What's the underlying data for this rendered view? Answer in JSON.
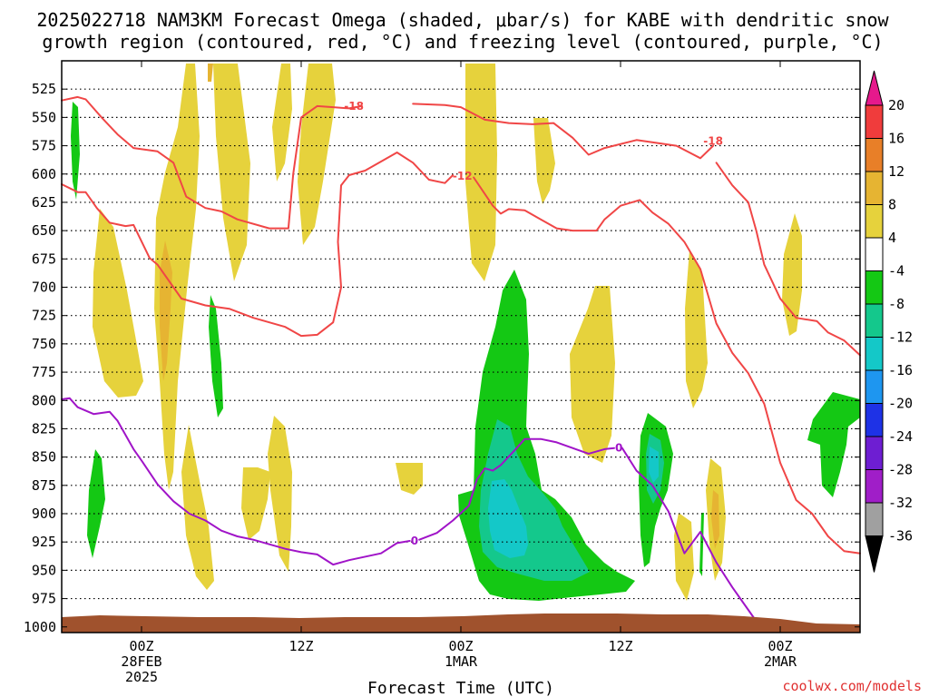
{
  "chart_data": {
    "type": "time-height contour",
    "title_line1": "2025022718 NAM3KM Forecast Omega (shaded, μbar/s) for KABE with dendritic snow",
    "title_line2": "growth region (contoured, red, °C) and freezing level (contoured, purple, °C)",
    "xlabel": "Forecast Time (UTC)",
    "credit": "coolwx.com/models",
    "x_range_hours": [
      -5,
      45
    ],
    "y_range_hpa": [
      500,
      1005
    ],
    "x_ticks": [
      {
        "hour": 0,
        "lines": [
          "00Z",
          "28FEB",
          "2025"
        ]
      },
      {
        "hour": 10,
        "lines": [
          "12Z"
        ]
      },
      {
        "hour": 20,
        "lines": [
          "00Z",
          "1MAR"
        ]
      },
      {
        "hour": 30,
        "lines": [
          "12Z"
        ]
      },
      {
        "hour": 40,
        "lines": [
          "00Z",
          "2MAR"
        ]
      }
    ],
    "y_ticks": [
      525,
      550,
      575,
      600,
      625,
      650,
      675,
      700,
      725,
      750,
      775,
      800,
      825,
      850,
      875,
      900,
      925,
      950,
      975,
      1000
    ],
    "colorbar": {
      "labels": [
        "20",
        "16",
        "12",
        "8",
        "4",
        "-4",
        "-8",
        "-12",
        "-16",
        "-20",
        "-24",
        "-28",
        "-32",
        "-36"
      ],
      "colors": [
        "#f03c3c",
        "#e87f28",
        "#e6b432",
        "#e6d23c",
        "#ffffff",
        "#14c814",
        "#14c88c",
        "#14c8c8",
        "#1e96f0",
        "#1e32e6",
        "#6e1ed2",
        "#a01ec8",
        "#a0a0a0"
      ],
      "over_color": "#e6198c",
      "under_color": "#000000"
    },
    "shading_colors": {
      "pos_4_8": "#e6d23c",
      "pos_8_12": "#e6b432",
      "neg_4_8": "#14c814",
      "neg_8_12": "#14c88c",
      "neg_12_16": "#14c8c8",
      "ground": "#a0522d"
    },
    "contour_colors": {
      "red": "#f04646",
      "purple": "#a014c8"
    },
    "contour_labels": [
      {
        "text": "-18",
        "hour": 13.3,
        "hpa": 540,
        "color": "#f04646"
      },
      {
        "text": "-18",
        "hour": 35.8,
        "hpa": 571,
        "color": "#f04646"
      },
      {
        "text": "-12",
        "hour": 20.1,
        "hpa": 602,
        "color": "#f04646"
      },
      {
        "text": "0",
        "hour": 17.1,
        "hpa": 924,
        "color": "#a014c8"
      },
      {
        "text": "0",
        "hour": 29.9,
        "hpa": 842,
        "color": "#a014c8"
      }
    ],
    "series": [
      {
        "color": "#f04646",
        "points": [
          [
            -5,
            535
          ],
          [
            -4,
            532
          ],
          [
            -3.5,
            534
          ],
          [
            -2.5,
            550
          ],
          [
            -1.5,
            565
          ],
          [
            -0.5,
            577
          ],
          [
            1,
            580
          ],
          [
            2,
            590
          ],
          [
            2.8,
            620
          ],
          [
            4,
            630
          ],
          [
            5,
            633
          ],
          [
            6,
            640
          ],
          [
            8,
            648
          ],
          [
            9.2,
            648
          ],
          [
            9.5,
            600
          ],
          [
            10,
            550
          ],
          [
            11,
            540
          ],
          [
            12,
            541
          ],
          [
            13,
            542
          ],
          [
            13.8,
            540
          ]
        ]
      },
      {
        "color": "#f04646",
        "points": [
          [
            17,
            538
          ],
          [
            19,
            539
          ],
          [
            20,
            541
          ],
          [
            21.5,
            552
          ],
          [
            23,
            555
          ],
          [
            24.5,
            556
          ],
          [
            25.8,
            555
          ],
          [
            27,
            568
          ],
          [
            28,
            583
          ],
          [
            29,
            577
          ],
          [
            31,
            570
          ],
          [
            33.5,
            575
          ],
          [
            35,
            586
          ],
          [
            35.8,
            575
          ]
        ]
      },
      {
        "color": "#f04646",
        "points": [
          [
            36,
            590
          ],
          [
            37,
            610
          ],
          [
            38,
            625
          ],
          [
            38.5,
            650
          ],
          [
            39,
            680
          ],
          [
            40,
            710
          ],
          [
            41,
            727
          ],
          [
            42.3,
            730
          ],
          [
            43,
            740
          ],
          [
            44,
            747
          ],
          [
            45,
            760
          ]
        ]
      },
      {
        "color": "#f04646",
        "points": [
          [
            -5,
            609
          ],
          [
            -4,
            616
          ],
          [
            -3.5,
            616
          ],
          [
            -2.8,
            630
          ],
          [
            -2,
            643
          ],
          [
            -1,
            646
          ],
          [
            -0.5,
            645
          ],
          [
            0.5,
            674
          ],
          [
            1,
            680
          ],
          [
            2.5,
            710
          ],
          [
            4,
            716
          ],
          [
            5.5,
            719
          ],
          [
            7,
            727
          ],
          [
            9,
            735
          ],
          [
            10,
            743
          ],
          [
            11,
            742
          ],
          [
            12,
            731
          ],
          [
            12.5,
            700
          ],
          [
            12.3,
            660
          ],
          [
            12.5,
            610
          ],
          [
            13,
            601
          ],
          [
            14,
            597
          ],
          [
            16,
            581
          ],
          [
            17,
            590
          ],
          [
            18,
            605
          ],
          [
            19,
            608
          ],
          [
            19.5,
            601
          ]
        ]
      },
      {
        "color": "#f04646",
        "points": [
          [
            20.8,
            603
          ],
          [
            22,
            628
          ],
          [
            22.5,
            635
          ],
          [
            23,
            631
          ],
          [
            24,
            632
          ],
          [
            25,
            640
          ],
          [
            26,
            648
          ],
          [
            27,
            650
          ],
          [
            28.5,
            650
          ],
          [
            29,
            640
          ],
          [
            30,
            628
          ],
          [
            31.2,
            623
          ],
          [
            32,
            634
          ],
          [
            33,
            644
          ],
          [
            34,
            660
          ],
          [
            35,
            684
          ],
          [
            36,
            732
          ],
          [
            37,
            758
          ],
          [
            38,
            776
          ],
          [
            39,
            803
          ],
          [
            40,
            855
          ],
          [
            41,
            888
          ],
          [
            42,
            900
          ],
          [
            43,
            920
          ],
          [
            44,
            933
          ],
          [
            45,
            935
          ]
        ]
      },
      {
        "color": "#a014c8",
        "points": [
          [
            -5,
            799
          ],
          [
            -4.5,
            798
          ],
          [
            -4,
            806
          ],
          [
            -3,
            812
          ],
          [
            -2,
            810
          ],
          [
            -1.5,
            818
          ],
          [
            -0.5,
            843
          ],
          [
            0,
            853
          ],
          [
            1,
            874
          ],
          [
            2,
            889
          ],
          [
            3,
            900
          ],
          [
            4,
            906
          ],
          [
            5,
            915
          ],
          [
            6,
            920
          ],
          [
            7,
            923
          ],
          [
            8,
            927
          ],
          [
            9,
            931
          ],
          [
            10,
            934
          ],
          [
            11,
            936
          ],
          [
            12,
            945
          ],
          [
            13,
            941
          ],
          [
            15,
            935
          ],
          [
            16,
            926
          ],
          [
            16.8,
            924
          ]
        ]
      },
      {
        "color": "#a014c8",
        "points": [
          [
            17.4,
            923
          ],
          [
            18.5,
            917
          ],
          [
            19.5,
            906
          ],
          [
            20.5,
            893
          ],
          [
            21,
            870
          ],
          [
            21.5,
            860
          ],
          [
            22,
            862
          ],
          [
            22.5,
            857
          ],
          [
            23.5,
            842
          ],
          [
            24,
            834
          ],
          [
            25,
            834
          ],
          [
            26,
            837
          ],
          [
            27,
            842
          ],
          [
            28,
            847
          ],
          [
            29,
            843
          ],
          [
            29.6,
            842
          ]
        ]
      },
      {
        "color": "#a014c8",
        "points": [
          [
            30.1,
            842
          ],
          [
            31,
            862
          ],
          [
            32,
            875
          ],
          [
            33,
            898
          ],
          [
            34,
            935
          ],
          [
            35,
            916
          ],
          [
            36,
            943
          ],
          [
            37,
            965
          ],
          [
            38,
            985
          ],
          [
            38.5,
            995
          ]
        ]
      }
    ]
  }
}
